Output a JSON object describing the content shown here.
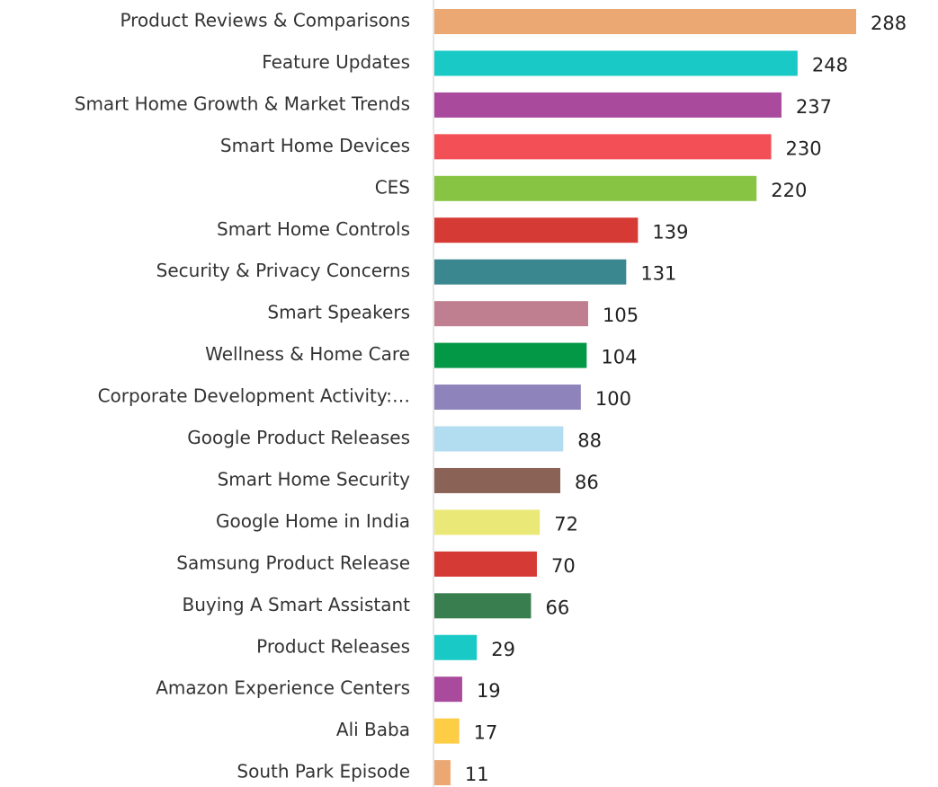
{
  "chart_data": {
    "type": "bar",
    "orientation": "horizontal",
    "categories": [
      "Product Reviews & Comparisons",
      "Feature Updates",
      "Smart Home Growth & Market Trends",
      "Smart Home Devices",
      "CES",
      "Smart Home Controls",
      "Security & Privacy Concerns",
      "Smart Speakers",
      "Wellness & Home Care",
      "Corporate Development Activity:…",
      "Google Product Releases",
      "Smart Home Security",
      "Google Home in India",
      "Samsung Product Release",
      "Buying A Smart Assistant",
      "Product Releases",
      "Amazon Experience Centers",
      "Ali Baba",
      "South Park Episode"
    ],
    "values": [
      288,
      248,
      237,
      230,
      220,
      139,
      131,
      105,
      104,
      100,
      88,
      86,
      72,
      70,
      66,
      29,
      19,
      17,
      11
    ],
    "colors": [
      "#eba873",
      "#19c9c5",
      "#aa4a9c",
      "#f24f56",
      "#88c444",
      "#d63a34",
      "#3b8790",
      "#c07f90",
      "#029845",
      "#8e84bb",
      "#b2ddf0",
      "#8b6256",
      "#eae877",
      "#d63a34",
      "#397e4e",
      "#19c9c5",
      "#aa4a9c",
      "#fccd45",
      "#eba873"
    ]
  }
}
